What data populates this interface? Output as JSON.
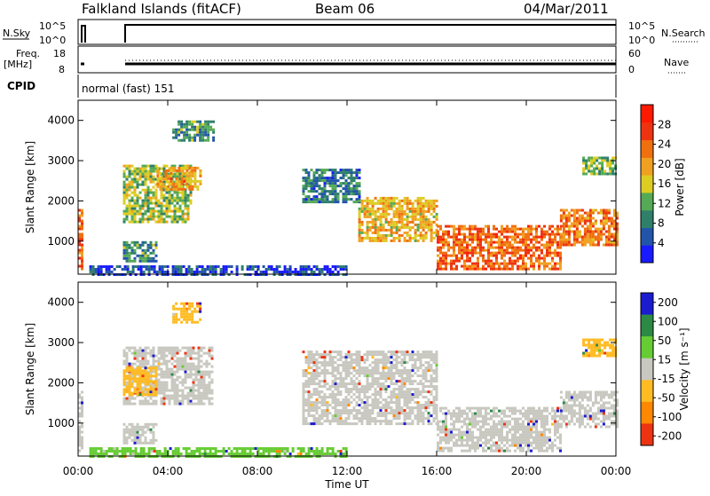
{
  "header": {
    "title": "Falkland Islands (fitACF)",
    "beam": "Beam 06",
    "date": "04/Mar/2011"
  },
  "status_panels": {
    "nsky_label": "N.Sky",
    "nsky_ticks": [
      "10^5",
      "10^0"
    ],
    "nsearch_label": "N.Search",
    "nsearch_ticks": [
      "10^5",
      "10^0"
    ],
    "freq_label": "Freq.",
    "freq_unit": "[MHz]",
    "freq_ticks": [
      "18",
      "8"
    ],
    "nave_label": "Nave",
    "nave_ticks": [
      "60",
      "0"
    ],
    "cpid_label": "CPID",
    "cpid_text": "normal (fast) 151"
  },
  "x_axis": {
    "label": "Time UT",
    "ticks": [
      "00:00",
      "04:00",
      "08:00",
      "12:00",
      "16:00",
      "20:00",
      "00:00"
    ]
  },
  "power_panel": {
    "ylabel": "Slant Range [km]",
    "yticks": [
      "1000",
      "2000",
      "3000",
      "4000"
    ],
    "colorbar_label": "Power [dB]",
    "colorbar_ticks": [
      "4",
      "8",
      "12",
      "16",
      "20",
      "24",
      "28"
    ]
  },
  "velocity_panel": {
    "ylabel": "Slant Range [km]",
    "yticks": [
      "1000",
      "2000",
      "3000",
      "4000"
    ],
    "colorbar_label": "Velocity [m s⁻¹]",
    "colorbar_ticks": [
      "200",
      "100",
      "50",
      "15",
      "-15",
      "-50",
      "-100",
      "-200"
    ]
  },
  "colors": {
    "power_scale": [
      "#1a1aff",
      "#2255aa",
      "#2f7f6a",
      "#55aa55",
      "#ddcc22",
      "#f0a020",
      "#f07010",
      "#ee3311",
      "#ff1a00"
    ],
    "velocity_scale": [
      "#1b1bd0",
      "#2d8a45",
      "#66cc33",
      "#c8c8c0",
      "#ffbb22",
      "#ff8800",
      "#ee3311"
    ],
    "grey": "#c8c8c0"
  },
  "chart_data": [
    {
      "type": "heatmap",
      "title": "Power",
      "xlabel": "Time UT",
      "ylabel": "Slant Range [km]",
      "xlim": [
        "00:00",
        "24:00"
      ],
      "ylim": [
        180,
        4500
      ],
      "zlabel": "Power [dB]",
      "zlim": [
        0,
        32
      ],
      "regions": [
        {
          "t_start": 0.0,
          "t_end": 0.2,
          "r_start": 300,
          "r_end": 1800,
          "level": 24
        },
        {
          "t_start": 2.0,
          "t_end": 5.0,
          "r_start": 1500,
          "r_end": 2900,
          "level": 14
        },
        {
          "t_start": 3.5,
          "t_end": 5.5,
          "r_start": 2300,
          "r_end": 2850,
          "level": 20
        },
        {
          "t_start": 2.0,
          "t_end": 3.5,
          "r_start": 500,
          "r_end": 1000,
          "level": 10
        },
        {
          "t_start": 4.2,
          "t_end": 6.0,
          "r_start": 3500,
          "r_end": 4000,
          "level": 10
        },
        {
          "t_start": 10.0,
          "t_end": 12.5,
          "r_start": 2000,
          "r_end": 2800,
          "level": 8
        },
        {
          "t_start": 12.5,
          "t_end": 16.0,
          "r_start": 1000,
          "r_end": 2100,
          "level": 18
        },
        {
          "t_start": 16.0,
          "t_end": 21.5,
          "r_start": 300,
          "r_end": 1400,
          "level": 24
        },
        {
          "t_start": 21.5,
          "t_end": 24.0,
          "r_start": 900,
          "r_end": 1800,
          "level": 22
        },
        {
          "t_start": 22.5,
          "t_end": 24.0,
          "r_start": 2700,
          "r_end": 3100,
          "level": 12
        },
        {
          "t_start": 0.5,
          "t_end": 12.0,
          "r_start": 200,
          "r_end": 400,
          "level": 5
        }
      ]
    },
    {
      "type": "heatmap",
      "title": "Velocity",
      "xlabel": "Time UT",
      "ylabel": "Slant Range [km]",
      "xlim": [
        "00:00",
        "24:00"
      ],
      "ylim": [
        180,
        4500
      ],
      "zlabel": "Velocity [m s⁻¹]",
      "zlim": [
        -200,
        200
      ],
      "regions": [
        {
          "t_start": 0.0,
          "t_end": 0.2,
          "r_start": 300,
          "r_end": 1800,
          "level": 0
        },
        {
          "t_start": 2.0,
          "t_end": 6.0,
          "r_start": 1500,
          "r_end": 2900,
          "level": 0
        },
        {
          "t_start": 2.0,
          "t_end": 3.5,
          "r_start": 1700,
          "r_end": 2400,
          "level": -40
        },
        {
          "t_start": 4.2,
          "t_end": 5.5,
          "r_start": 3500,
          "r_end": 4000,
          "level": -40
        },
        {
          "t_start": 2.0,
          "t_end": 3.5,
          "r_start": 500,
          "r_end": 1000,
          "level": 0
        },
        {
          "t_start": 10.0,
          "t_end": 16.0,
          "r_start": 1000,
          "r_end": 2800,
          "level": 0
        },
        {
          "t_start": 16.0,
          "t_end": 21.5,
          "r_start": 300,
          "r_end": 1400,
          "level": 0
        },
        {
          "t_start": 21.5,
          "t_end": 24.0,
          "r_start": 900,
          "r_end": 1800,
          "level": 0
        },
        {
          "t_start": 22.5,
          "t_end": 24.0,
          "r_start": 2700,
          "r_end": 3100,
          "level": -40
        },
        {
          "t_start": 0.5,
          "t_end": 12.0,
          "r_start": 200,
          "r_end": 400,
          "level": 30
        }
      ]
    }
  ]
}
